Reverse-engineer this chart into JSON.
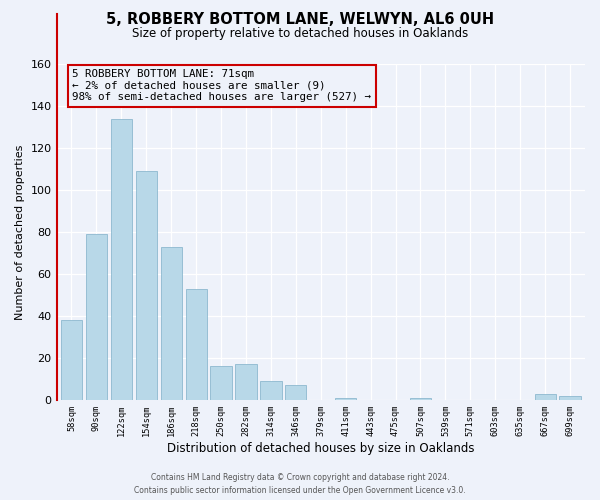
{
  "title": "5, ROBBERY BOTTOM LANE, WELWYN, AL6 0UH",
  "subtitle": "Size of property relative to detached houses in Oaklands",
  "xlabel": "Distribution of detached houses by size in Oaklands",
  "ylabel": "Number of detached properties",
  "bar_color": "#b8d8e8",
  "bar_edge_color": "#7fb0c8",
  "highlight_color": "#cc0000",
  "background_color": "#eef2fa",
  "grid_color": "#d0d8e8",
  "bin_labels": [
    "58sqm",
    "90sqm",
    "122sqm",
    "154sqm",
    "186sqm",
    "218sqm",
    "250sqm",
    "282sqm",
    "314sqm",
    "346sqm",
    "379sqm",
    "411sqm",
    "443sqm",
    "475sqm",
    "507sqm",
    "539sqm",
    "571sqm",
    "603sqm",
    "635sqm",
    "667sqm",
    "699sqm"
  ],
  "bar_heights": [
    38,
    79,
    134,
    109,
    73,
    53,
    16,
    17,
    9,
    7,
    0,
    1,
    0,
    0,
    1,
    0,
    0,
    0,
    0,
    3,
    2
  ],
  "ylim": [
    0,
    160
  ],
  "annotation_line1": "5 ROBBERY BOTTOM LANE: 71sqm",
  "annotation_line2": "← 2% of detached houses are smaller (9)",
  "annotation_line3": "98% of semi-detached houses are larger (527) →",
  "footer_line1": "Contains HM Land Registry data © Crown copyright and database right 2024.",
  "footer_line2": "Contains public sector information licensed under the Open Government Licence v3.0."
}
